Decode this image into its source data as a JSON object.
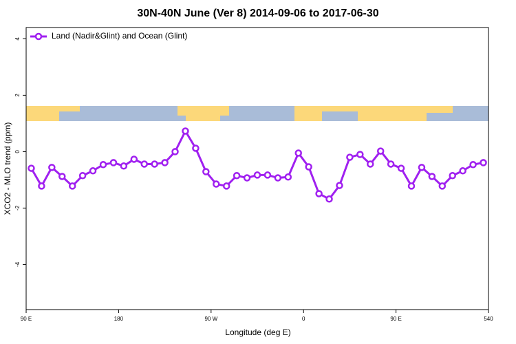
{
  "chart_data": {
    "type": "line",
    "title": "30N-40N June (Ver 8)   2014-09-06 to 2017-06-30",
    "x_label": "Longitude (deg E)",
    "y_label": "XCO2 - MLO trend (ppm)",
    "legend": "topleft",
    "x": [
      95,
      105,
      115,
      125,
      135,
      145,
      155,
      165,
      175,
      185,
      195,
      205,
      215,
      225,
      235,
      245,
      255,
      265,
      275,
      285,
      295,
      305,
      315,
      325,
      335,
      345,
      355,
      365,
      375,
      385,
      395,
      405,
      415,
      425,
      435,
      445,
      455,
      465,
      475,
      485,
      495,
      505,
      515,
      525,
      535
    ],
    "series": [
      {
        "name": "Land (Nadir&Glint) and Ocean (Glint)",
        "color": "#a020f0",
        "values": [
          -0.59,
          -1.22,
          -0.56,
          -0.88,
          -1.22,
          -0.85,
          -0.68,
          -0.46,
          -0.39,
          -0.51,
          -0.27,
          -0.44,
          -0.44,
          -0.39,
          0,
          0.73,
          0.12,
          -0.71,
          -1.15,
          -1.22,
          -0.85,
          -0.93,
          -0.83,
          -0.83,
          -0.93,
          -0.9,
          -0.05,
          -0.54,
          -1.49,
          -1.68,
          -1.2,
          -0.2,
          -0.1,
          -0.44,
          0.02,
          -0.44,
          -0.59,
          -1.22,
          -0.56,
          -0.88,
          -1.22,
          -0.85,
          -0.68,
          -0.46,
          -0.39
        ]
      }
    ],
    "xlim": [
      90,
      540
    ],
    "xticks": [
      {
        "value": 90,
        "label": "90 E"
      },
      180,
      {
        "value": 270,
        "label": "90 W"
      },
      {
        "value": 360,
        "label": "0"
      },
      {
        "value": 450,
        "label": "90 E"
      },
      540
    ],
    "ylim": [
      -5.6,
      4.4
    ],
    "yticks": [
      -4,
      -2,
      0,
      2,
      4
    ]
  }
}
